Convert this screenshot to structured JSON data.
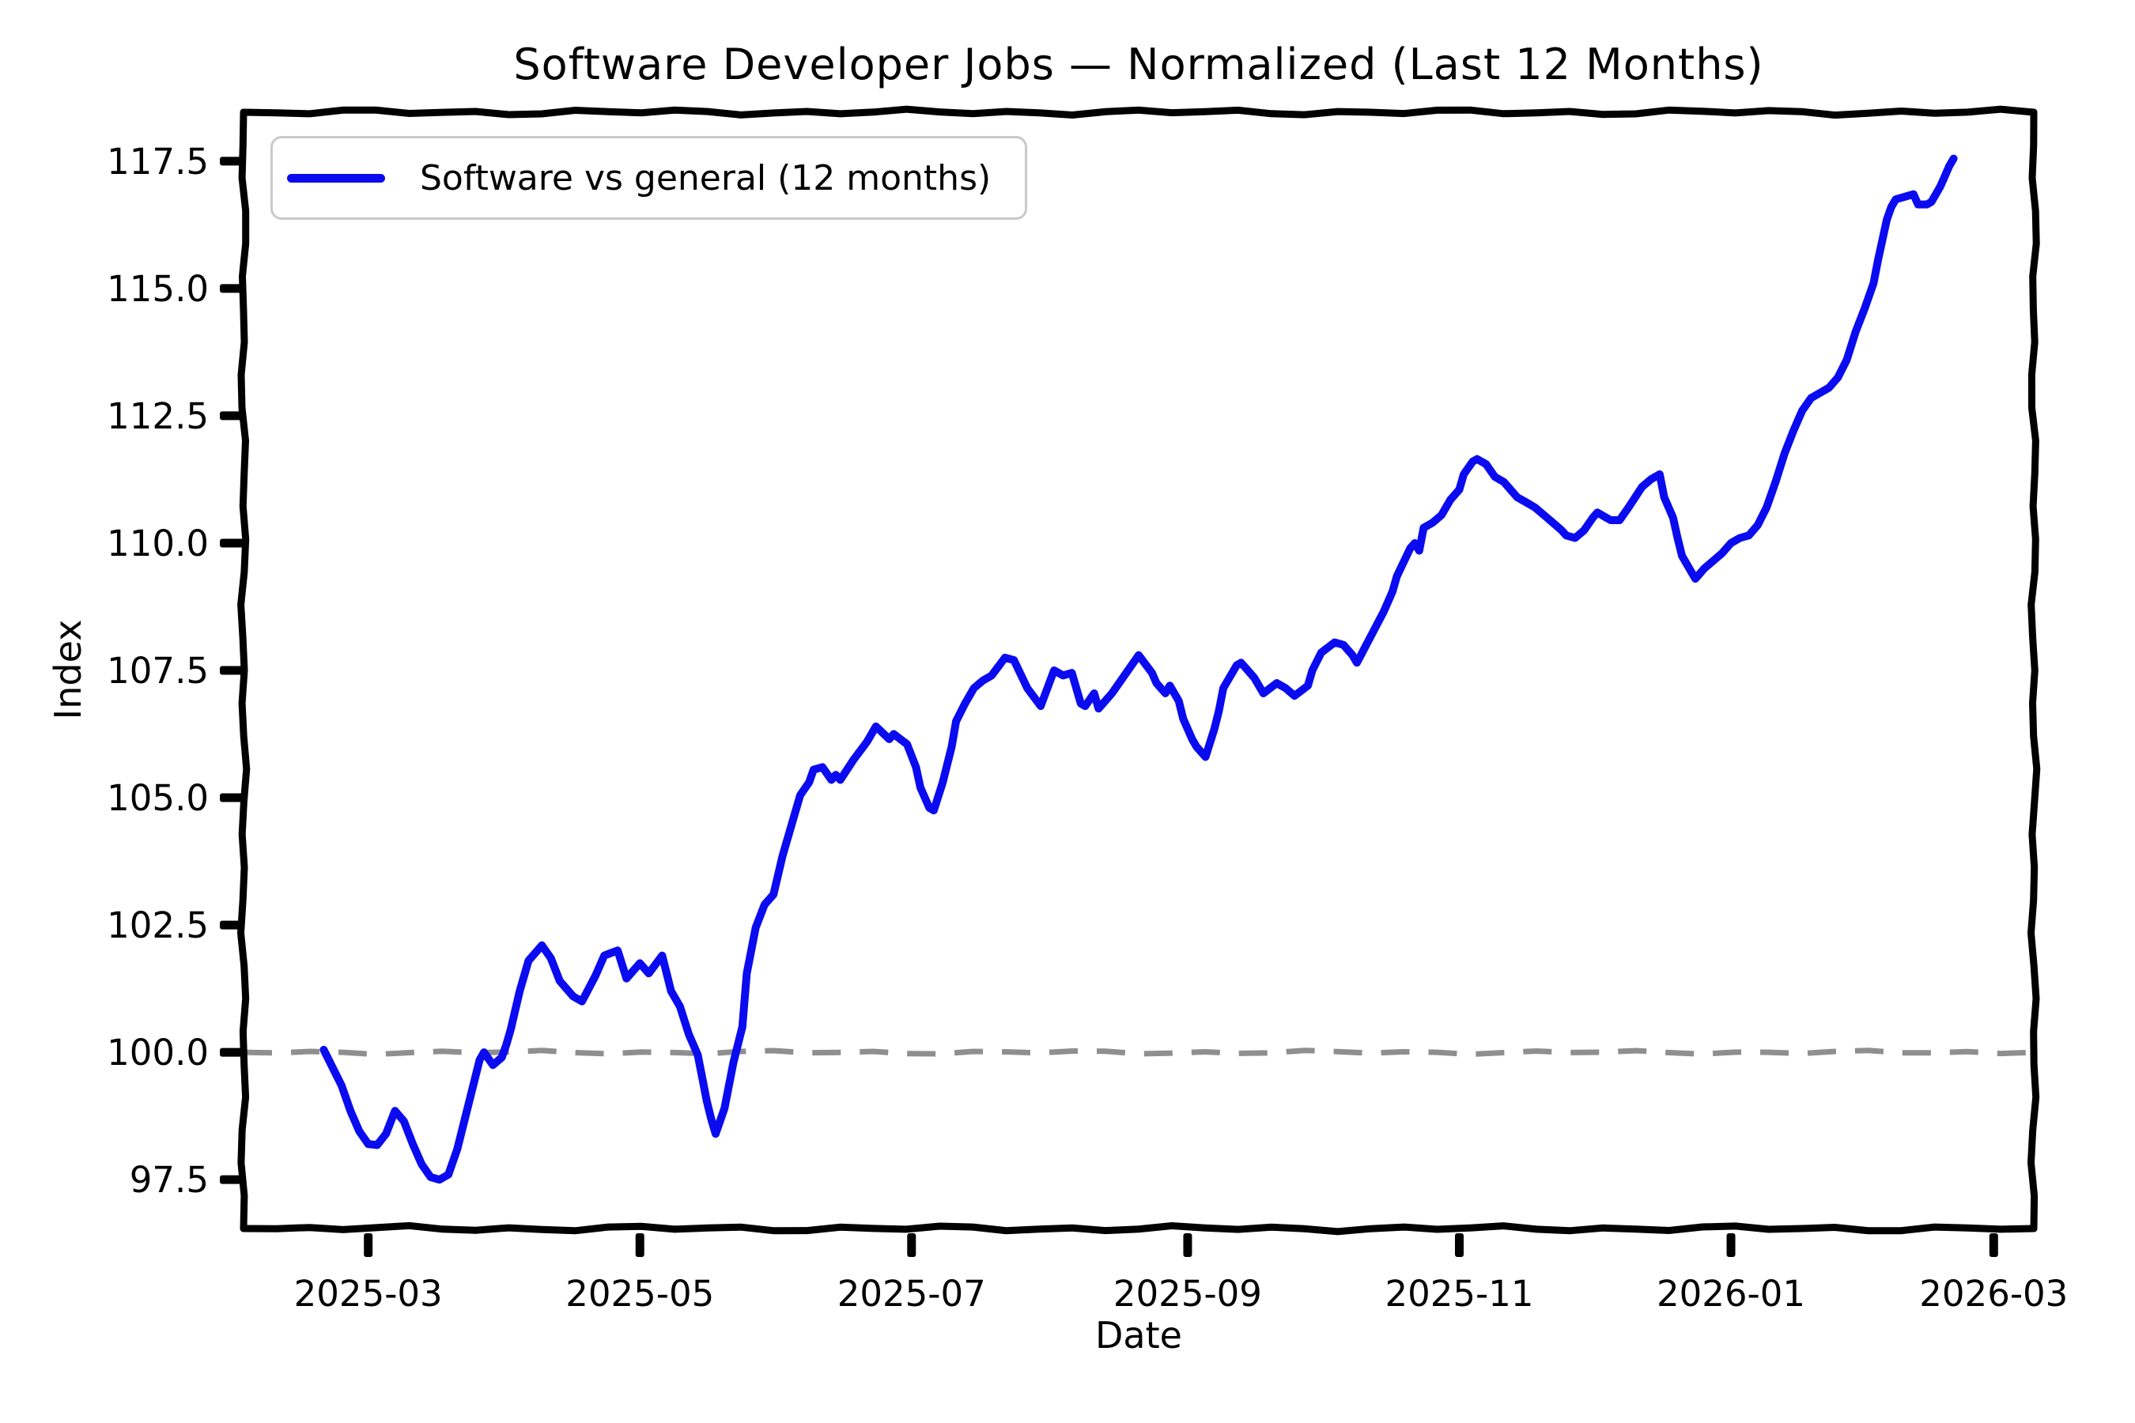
{
  "chart_data": {
    "type": "line",
    "title": "Software Developer Jobs — Normalized (Last 12 Months)",
    "xlabel": "Date",
    "ylabel": "Index",
    "legend_entries": [
      "Software vs general (12 months)"
    ],
    "legend_position": "upper left",
    "grid": false,
    "style": "xkcd-handdrawn",
    "colors": {
      "line": "#0b0bf0",
      "baseline": "#8f8f8f",
      "frame": "#000000",
      "legend_border": "#c9c9c9",
      "text": "#000000",
      "background": "#ffffff"
    },
    "x_ticks": [
      {
        "label": "2025-03",
        "date": "2025-03-01"
      },
      {
        "label": "2025-05",
        "date": "2025-05-01"
      },
      {
        "label": "2025-07",
        "date": "2025-07-01"
      },
      {
        "label": "2025-09",
        "date": "2025-09-01"
      },
      {
        "label": "2025-11",
        "date": "2025-11-01"
      },
      {
        "label": "2026-01",
        "date": "2026-01-01"
      },
      {
        "label": "2026-03",
        "date": "2026-03-01"
      }
    ],
    "y_ticks": [
      97.5,
      100.0,
      102.5,
      105.0,
      107.5,
      110.0,
      112.5,
      115.0,
      117.5
    ],
    "xlim": [
      "2025-02-01",
      "2026-03-10"
    ],
    "ylim": [
      96.54,
      118.46
    ],
    "baseline": {
      "value": 100.0,
      "style": "dashed",
      "color": "#8f8f8f"
    },
    "series": [
      {
        "name": "Software vs general (12 months)",
        "color": "#0b0bf0",
        "points": [
          [
            "2025-02-19",
            100.05
          ],
          [
            "2025-02-21",
            99.7
          ],
          [
            "2025-02-23",
            99.35
          ],
          [
            "2025-02-25",
            98.85
          ],
          [
            "2025-02-27",
            98.45
          ],
          [
            "2025-03-01",
            98.2
          ],
          [
            "2025-03-03",
            98.18
          ],
          [
            "2025-03-05",
            98.4
          ],
          [
            "2025-03-07",
            98.85
          ],
          [
            "2025-03-09",
            98.65
          ],
          [
            "2025-03-11",
            98.2
          ],
          [
            "2025-03-13",
            97.8
          ],
          [
            "2025-03-15",
            97.55
          ],
          [
            "2025-03-17",
            97.5
          ],
          [
            "2025-03-19",
            97.6
          ],
          [
            "2025-03-21",
            98.1
          ],
          [
            "2025-03-23",
            98.8
          ],
          [
            "2025-03-25",
            99.5
          ],
          [
            "2025-03-26",
            99.85
          ],
          [
            "2025-03-27",
            100.0
          ],
          [
            "2025-03-29",
            99.75
          ],
          [
            "2025-03-31",
            99.9
          ],
          [
            "2025-04-01",
            100.15
          ],
          [
            "2025-04-02",
            100.45
          ],
          [
            "2025-04-04",
            101.2
          ],
          [
            "2025-04-06",
            101.8
          ],
          [
            "2025-04-09",
            102.1
          ],
          [
            "2025-04-11",
            101.85
          ],
          [
            "2025-04-13",
            101.4
          ],
          [
            "2025-04-16",
            101.1
          ],
          [
            "2025-04-18",
            101.0
          ],
          [
            "2025-04-21",
            101.5
          ],
          [
            "2025-04-23",
            101.9
          ],
          [
            "2025-04-26",
            102.0
          ],
          [
            "2025-04-28",
            101.45
          ],
          [
            "2025-05-01",
            101.75
          ],
          [
            "2025-05-03",
            101.55
          ],
          [
            "2025-05-06",
            101.9
          ],
          [
            "2025-05-08",
            101.2
          ],
          [
            "2025-05-10",
            100.9
          ],
          [
            "2025-05-12",
            100.35
          ],
          [
            "2025-05-14",
            99.95
          ],
          [
            "2025-05-15",
            99.5
          ],
          [
            "2025-05-16",
            99.05
          ],
          [
            "2025-05-17",
            98.7
          ],
          [
            "2025-05-18",
            98.4
          ],
          [
            "2025-05-20",
            98.9
          ],
          [
            "2025-05-22",
            99.8
          ],
          [
            "2025-05-24",
            100.5
          ],
          [
            "2025-05-25",
            101.55
          ],
          [
            "2025-05-27",
            102.45
          ],
          [
            "2025-05-29",
            102.9
          ],
          [
            "2025-05-31",
            103.1
          ],
          [
            "2025-06-02",
            103.85
          ],
          [
            "2025-06-04",
            104.45
          ],
          [
            "2025-06-06",
            105.05
          ],
          [
            "2025-06-08",
            105.3
          ],
          [
            "2025-06-09",
            105.55
          ],
          [
            "2025-06-11",
            105.6
          ],
          [
            "2025-06-13",
            105.35
          ],
          [
            "2025-06-14",
            105.45
          ],
          [
            "2025-06-15",
            105.35
          ],
          [
            "2025-06-18",
            105.75
          ],
          [
            "2025-06-21",
            106.1
          ],
          [
            "2025-06-23",
            106.4
          ],
          [
            "2025-06-26",
            106.15
          ],
          [
            "2025-06-27",
            106.25
          ],
          [
            "2025-06-30",
            106.05
          ],
          [
            "2025-07-02",
            105.6
          ],
          [
            "2025-07-03",
            105.2
          ],
          [
            "2025-07-05",
            104.8
          ],
          [
            "2025-07-06",
            104.75
          ],
          [
            "2025-07-08",
            105.3
          ],
          [
            "2025-07-10",
            106.0
          ],
          [
            "2025-07-11",
            106.5
          ],
          [
            "2025-07-13",
            106.85
          ],
          [
            "2025-07-15",
            107.15
          ],
          [
            "2025-07-17",
            107.3
          ],
          [
            "2025-07-19",
            107.4
          ],
          [
            "2025-07-22",
            107.75
          ],
          [
            "2025-07-24",
            107.7
          ],
          [
            "2025-07-27",
            107.15
          ],
          [
            "2025-07-30",
            106.8
          ],
          [
            "2025-08-02",
            107.5
          ],
          [
            "2025-08-04",
            107.4
          ],
          [
            "2025-08-06",
            107.45
          ],
          [
            "2025-08-08",
            106.85
          ],
          [
            "2025-08-09",
            106.8
          ],
          [
            "2025-08-11",
            107.05
          ],
          [
            "2025-08-12",
            106.75
          ],
          [
            "2025-08-15",
            107.05
          ],
          [
            "2025-08-17",
            107.3
          ],
          [
            "2025-08-21",
            107.8
          ],
          [
            "2025-08-24",
            107.45
          ],
          [
            "2025-08-25",
            107.25
          ],
          [
            "2025-08-27",
            107.05
          ],
          [
            "2025-08-28",
            107.2
          ],
          [
            "2025-08-30",
            106.9
          ],
          [
            "2025-08-31",
            106.55
          ],
          [
            "2025-09-01",
            106.35
          ],
          [
            "2025-09-02",
            106.15
          ],
          [
            "2025-09-03",
            106.0
          ],
          [
            "2025-09-05",
            105.8
          ],
          [
            "2025-09-07",
            106.35
          ],
          [
            "2025-09-08",
            106.7
          ],
          [
            "2025-09-09",
            107.15
          ],
          [
            "2025-09-12",
            107.6
          ],
          [
            "2025-09-13",
            107.65
          ],
          [
            "2025-09-15",
            107.45
          ],
          [
            "2025-09-16",
            107.35
          ],
          [
            "2025-09-18",
            107.05
          ],
          [
            "2025-09-21",
            107.25
          ],
          [
            "2025-09-23",
            107.15
          ],
          [
            "2025-09-25",
            107.0
          ],
          [
            "2025-09-28",
            107.2
          ],
          [
            "2025-09-29",
            107.5
          ],
          [
            "2025-10-01",
            107.85
          ],
          [
            "2025-10-04",
            108.05
          ],
          [
            "2025-10-06",
            108.0
          ],
          [
            "2025-10-08",
            107.8
          ],
          [
            "2025-10-09",
            107.65
          ],
          [
            "2025-10-12",
            108.15
          ],
          [
            "2025-10-15",
            108.65
          ],
          [
            "2025-10-17",
            109.05
          ],
          [
            "2025-10-18",
            109.35
          ],
          [
            "2025-10-21",
            109.9
          ],
          [
            "2025-10-22",
            110.0
          ],
          [
            "2025-10-23",
            109.85
          ],
          [
            "2025-10-24",
            110.3
          ],
          [
            "2025-10-26",
            110.4
          ],
          [
            "2025-10-28",
            110.55
          ],
          [
            "2025-10-30",
            110.85
          ],
          [
            "2025-11-01",
            111.05
          ],
          [
            "2025-11-02",
            111.35
          ],
          [
            "2025-11-04",
            111.6
          ],
          [
            "2025-11-05",
            111.65
          ],
          [
            "2025-11-07",
            111.55
          ],
          [
            "2025-11-09",
            111.3
          ],
          [
            "2025-11-11",
            111.2
          ],
          [
            "2025-11-12",
            111.1
          ],
          [
            "2025-11-14",
            110.9
          ],
          [
            "2025-11-16",
            110.8
          ],
          [
            "2025-11-18",
            110.7
          ],
          [
            "2025-11-20",
            110.55
          ],
          [
            "2025-11-22",
            110.4
          ],
          [
            "2025-11-24",
            110.25
          ],
          [
            "2025-11-25",
            110.15
          ],
          [
            "2025-11-27",
            110.1
          ],
          [
            "2025-11-29",
            110.25
          ],
          [
            "2025-12-01",
            110.5
          ],
          [
            "2025-12-02",
            110.6
          ],
          [
            "2025-12-04",
            110.5
          ],
          [
            "2025-12-05",
            110.45
          ],
          [
            "2025-12-07",
            110.45
          ],
          [
            "2025-12-09",
            110.7
          ],
          [
            "2025-12-12",
            111.1
          ],
          [
            "2025-12-14",
            111.25
          ],
          [
            "2025-12-16",
            111.35
          ],
          [
            "2025-12-17",
            110.9
          ],
          [
            "2025-12-19",
            110.5
          ],
          [
            "2025-12-20",
            110.1
          ],
          [
            "2025-12-21",
            109.75
          ],
          [
            "2025-12-23",
            109.45
          ],
          [
            "2025-12-24",
            109.3
          ],
          [
            "2025-12-26",
            109.5
          ],
          [
            "2025-12-28",
            109.65
          ],
          [
            "2025-12-30",
            109.8
          ],
          [
            "2026-01-01",
            110.0
          ],
          [
            "2026-01-03",
            110.1
          ],
          [
            "2026-01-05",
            110.15
          ],
          [
            "2026-01-07",
            110.35
          ],
          [
            "2026-01-09",
            110.7
          ],
          [
            "2026-01-11",
            111.2
          ],
          [
            "2026-01-13",
            111.75
          ],
          [
            "2026-01-15",
            112.2
          ],
          [
            "2026-01-17",
            112.6
          ],
          [
            "2026-01-19",
            112.85
          ],
          [
            "2026-01-21",
            112.95
          ],
          [
            "2026-01-23",
            113.05
          ],
          [
            "2026-01-25",
            113.25
          ],
          [
            "2026-01-27",
            113.6
          ],
          [
            "2026-01-29",
            114.15
          ],
          [
            "2026-01-31",
            114.6
          ],
          [
            "2026-02-02",
            115.1
          ],
          [
            "2026-02-03",
            115.55
          ],
          [
            "2026-02-04",
            115.95
          ],
          [
            "2026-02-05",
            116.35
          ],
          [
            "2026-02-06",
            116.6
          ],
          [
            "2026-02-07",
            116.75
          ],
          [
            "2026-02-09",
            116.8
          ],
          [
            "2026-02-11",
            116.85
          ],
          [
            "2026-02-12",
            116.65
          ],
          [
            "2026-02-14",
            116.65
          ],
          [
            "2026-02-15",
            116.7
          ],
          [
            "2026-02-16",
            116.85
          ],
          [
            "2026-02-17",
            117.0
          ],
          [
            "2026-02-18",
            117.2
          ],
          [
            "2026-02-19",
            117.4
          ],
          [
            "2026-02-20",
            117.55
          ]
        ]
      }
    ]
  }
}
